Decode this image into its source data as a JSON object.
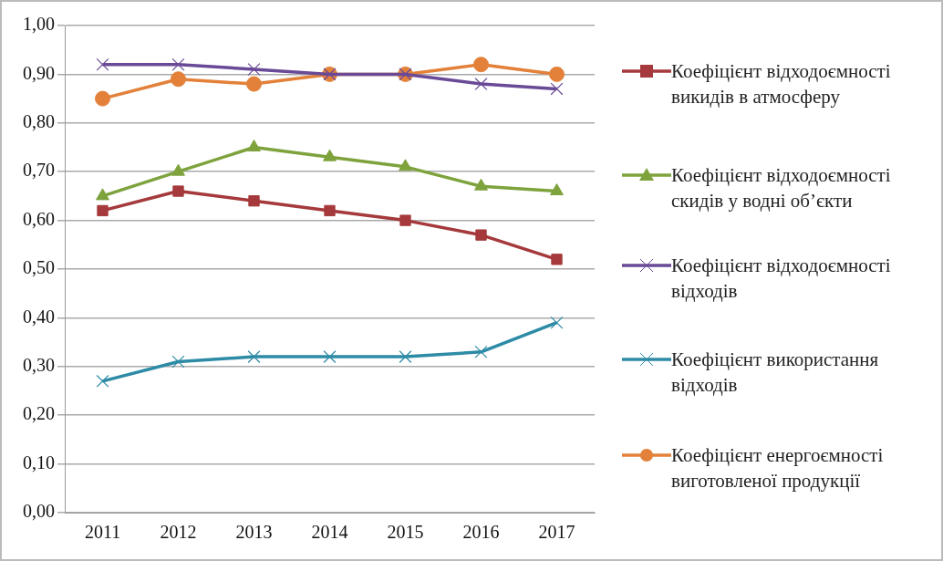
{
  "chart_data": {
    "type": "line",
    "categories": [
      "2011",
      "2012",
      "2013",
      "2014",
      "2015",
      "2016",
      "2017"
    ],
    "series": [
      {
        "name": "Коефіцієнт відходоємності викидів в атмосферу",
        "color": "#a5393b",
        "marker": "square",
        "values": [
          0.62,
          0.66,
          0.64,
          0.62,
          0.6,
          0.57,
          0.52
        ]
      },
      {
        "name": "Коефіцієнт відходоємності скидів у водні об’єкти",
        "color": "#7ea33d",
        "marker": "triangle",
        "values": [
          0.65,
          0.7,
          0.75,
          0.73,
          0.71,
          0.67,
          0.66
        ]
      },
      {
        "name": "Коефіцієнт відходоємності відходів",
        "color": "#6a4a97",
        "marker": "cross",
        "values": [
          0.92,
          0.92,
          0.91,
          0.9,
          0.9,
          0.88,
          0.87
        ]
      },
      {
        "name": "Коефіцієнт використання відходів",
        "color": "#2e8ba6",
        "marker": "cross",
        "values": [
          0.27,
          0.31,
          0.32,
          0.32,
          0.32,
          0.33,
          0.39
        ]
      },
      {
        "name": "Коефіцієнт енергоємності виготовленої продукції",
        "color": "#e3813a",
        "marker": "circle",
        "values": [
          0.85,
          0.89,
          0.88,
          0.9,
          0.9,
          0.92,
          0.9
        ]
      }
    ],
    "ylim": [
      0,
      1
    ],
    "yticks": [
      {
        "value": 0,
        "label": "0,00"
      },
      {
        "value": 0.1,
        "label": "0,10"
      },
      {
        "value": 0.2,
        "label": "0,20"
      },
      {
        "value": 0.3,
        "label": "0,30"
      },
      {
        "value": 0.4,
        "label": "0,40"
      },
      {
        "value": 0.5,
        "label": "0,50"
      },
      {
        "value": 0.6,
        "label": "0,60"
      },
      {
        "value": 0.7,
        "label": "0,70"
      },
      {
        "value": 0.8,
        "label": "0,80"
      },
      {
        "value": 0.9,
        "label": "0,90"
      },
      {
        "value": 1,
        "label": "1,00"
      }
    ],
    "grid": "y",
    "legend": "right",
    "line_style": "solid"
  }
}
